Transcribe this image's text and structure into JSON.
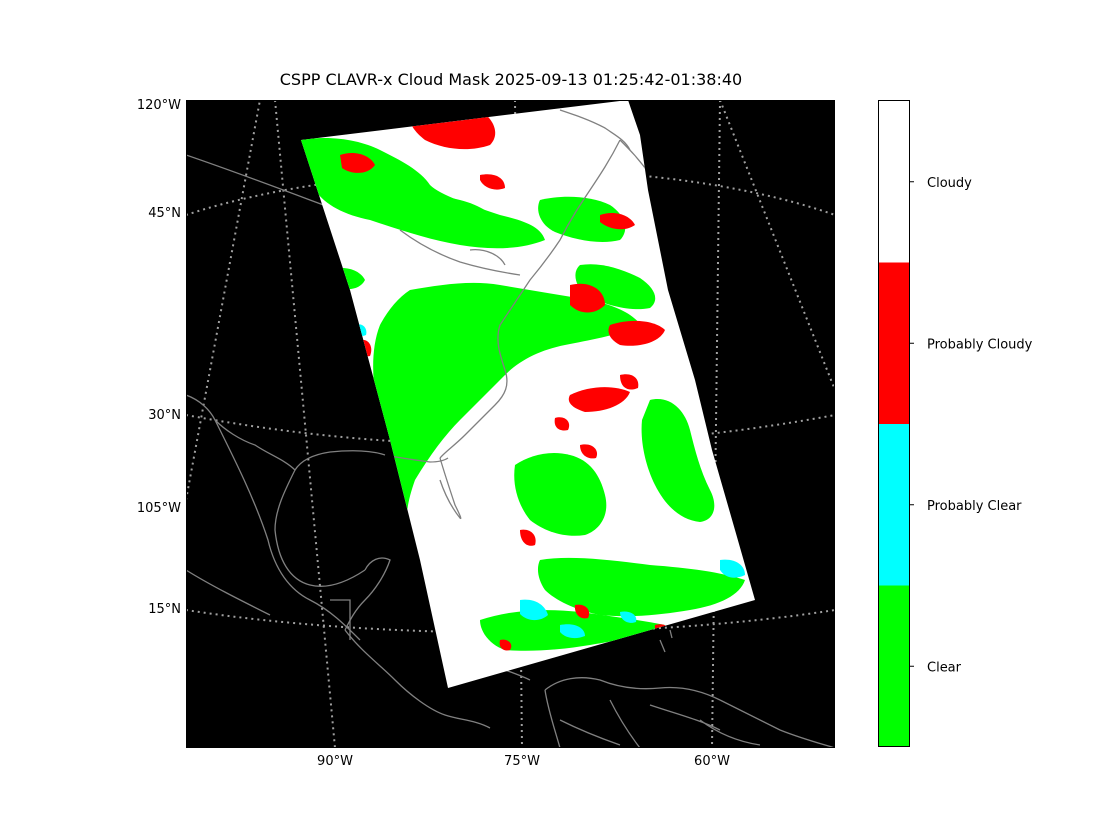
{
  "title": "CSPP CLAVR-x Cloud Mask 2025-09-13 01:25:42-01:38:40",
  "map": {
    "background": "#000000",
    "coastline_color": "#808080",
    "gridline_color": "#a0a0a0",
    "left_labels": [
      "120°W",
      "45°N",
      "30°N",
      "105°W",
      "15°N"
    ],
    "bottom_labels": [
      "90°W",
      "75°W",
      "60°W"
    ]
  },
  "colorbar": {
    "categories": [
      {
        "label": "Cloudy",
        "color": "#ffffff"
      },
      {
        "label": "Probably Cloudy",
        "color": "#ff0000"
      },
      {
        "label": "Probably Clear",
        "color": "#00ffff"
      },
      {
        "label": "Clear",
        "color": "#00ff00"
      }
    ]
  },
  "legend_colors": {
    "clear": "#00ff00",
    "probably_clear": "#00ffff",
    "probably_cloudy": "#ff0000",
    "cloudy": "#ffffff"
  }
}
